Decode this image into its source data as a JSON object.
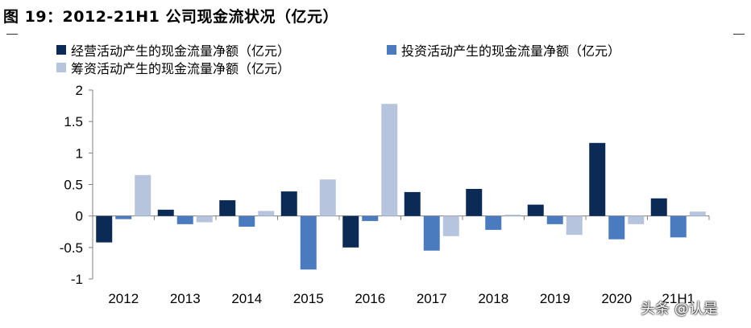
{
  "figure_title": "图 19：2012-21H1 公司现金流状况（亿元）",
  "watermark": "头条 @认是",
  "chart_data": {
    "type": "bar",
    "categories": [
      "2012",
      "2013",
      "2014",
      "2015",
      "2016",
      "2017",
      "2018",
      "2019",
      "2020",
      "21H1"
    ],
    "series": [
      {
        "name": "经营活动产生的现金流量净额（亿元）",
        "color": "#0b2a55",
        "values": [
          -0.42,
          0.1,
          0.25,
          0.39,
          -0.5,
          0.38,
          0.43,
          0.18,
          1.16,
          0.28
        ]
      },
      {
        "name": "投资活动产生的现金流量净额（亿元）",
        "color": "#4a7bbf",
        "values": [
          -0.05,
          -0.13,
          -0.17,
          -0.85,
          -0.08,
          -0.55,
          -0.22,
          -0.13,
          -0.37,
          -0.34
        ]
      },
      {
        "name": "筹资活动产生的现金流量净额（亿元）",
        "color": "#b7c4de",
        "values": [
          0.65,
          -0.1,
          0.08,
          0.58,
          1.78,
          -0.32,
          0.02,
          -0.3,
          -0.13,
          0.07
        ]
      }
    ],
    "ylim": [
      -1,
      2
    ],
    "yticks": [
      "2",
      "1.5",
      "1",
      "0.5",
      "0",
      "-0.5",
      "-1"
    ],
    "ytick_values": [
      2,
      1.5,
      1,
      0.5,
      0,
      -0.5,
      -1
    ],
    "legend_position": "top",
    "grid": false
  }
}
